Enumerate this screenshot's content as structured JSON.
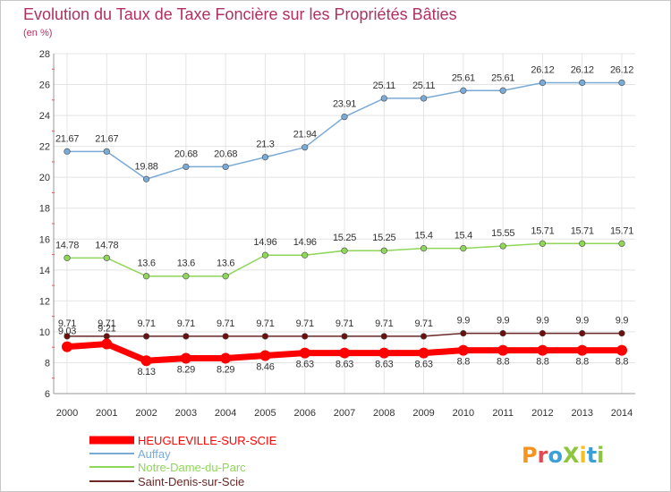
{
  "chart_data": {
    "type": "line",
    "title": "Evolution du Taux de Taxe Foncière sur les Propriétés Bâties",
    "unit_label": "(en %)",
    "x": [
      "2000",
      "2001",
      "2002",
      "2003",
      "2004",
      "2005",
      "2006",
      "2007",
      "2008",
      "2009",
      "2010",
      "2011",
      "2012",
      "2013",
      "2014"
    ],
    "ylim": [
      6,
      28
    ],
    "yticks": [
      "6",
      "8",
      "10",
      "12",
      "14",
      "16",
      "18",
      "20",
      "22",
      "24",
      "26",
      "28"
    ],
    "grid": true,
    "legend_position": "bottom-left",
    "series": [
      {
        "name": "HEUGLEVILLE-SUR-SCIE",
        "color": "#ff0000",
        "values": [
          9.03,
          9.21,
          8.13,
          8.29,
          8.29,
          8.46,
          8.63,
          8.63,
          8.63,
          8.63,
          8.8,
          8.8,
          8.8,
          8.8,
          8.8
        ],
        "labels": [
          "9.03",
          "9.21",
          "8.13",
          "8.29",
          "8.29",
          "8.46",
          "8.63",
          "8.63",
          "8.63",
          "8.63",
          "8.8",
          "8.8",
          "8.8",
          "8.8",
          "8.8"
        ]
      },
      {
        "name": "Auffay",
        "color": "#7aaad6",
        "values": [
          21.67,
          21.67,
          19.88,
          20.68,
          20.68,
          21.3,
          21.94,
          23.91,
          25.11,
          25.11,
          25.61,
          25.61,
          26.12,
          26.12,
          26.12
        ],
        "labels": [
          "21.67",
          "21.67",
          "19.88",
          "20.68",
          "20.68",
          "21.3",
          "21.94",
          "23.91",
          "25.11",
          "25.11",
          "25.61",
          "25.61",
          "26.12",
          "26.12",
          "26.12"
        ]
      },
      {
        "name": "Notre-Dame-du-Parc",
        "color": "#8fd65a",
        "values": [
          14.78,
          14.78,
          13.6,
          13.6,
          13.6,
          14.96,
          14.96,
          15.25,
          15.25,
          15.4,
          15.4,
          15.55,
          15.71,
          15.71,
          15.71
        ],
        "labels": [
          "14.78",
          "14.78",
          "13.6",
          "13.6",
          "13.6",
          "14.96",
          "14.96",
          "15.25",
          "15.25",
          "15.4",
          "15.4",
          "15.55",
          "15.71",
          "15.71",
          "15.71"
        ]
      },
      {
        "name": "Saint-Denis-sur-Scie",
        "color": "#6b2626",
        "values": [
          9.71,
          9.71,
          9.71,
          9.71,
          9.71,
          9.71,
          9.71,
          9.71,
          9.71,
          9.71,
          9.9,
          9.9,
          9.9,
          9.9,
          9.9
        ],
        "labels": [
          "9.71",
          "9.71",
          "9.71",
          "9.71",
          "9.71",
          "9.71",
          "9.71",
          "9.71",
          "9.71",
          "9.71",
          "9.9",
          "9.9",
          "9.9",
          "9.9",
          "9.9"
        ]
      }
    ]
  },
  "logo": {
    "text": "ProXiti"
  },
  "colors": {
    "title": "#b03060",
    "grid": "#e4e4e4",
    "axis_text": "#333333"
  }
}
